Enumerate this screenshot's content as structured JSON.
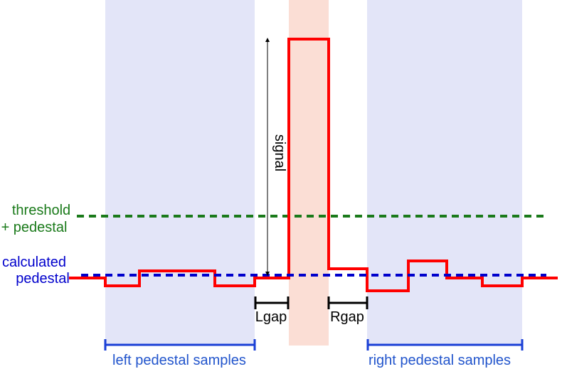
{
  "labels": {
    "signal": "signal",
    "threshold_line1": "threshold",
    "threshold_line2": "+ pedestal",
    "calc_line1": "calculated",
    "calc_line2": "pedestal",
    "lgap": "Lgap",
    "rgap": "Rgap",
    "left_samples": "left pedestal samples",
    "right_samples": "right pedestal samples"
  },
  "colors": {
    "pedestal_region": "#e3e5f8",
    "signal_region": "#fbded5",
    "waveform": "#ff0000",
    "threshold": "#1a7a1a",
    "pedestal": "#0000cc",
    "sample_bracket": "#1a3fd6",
    "sample_text": "#2255cc",
    "gap_bracket": "#000000"
  }
}
